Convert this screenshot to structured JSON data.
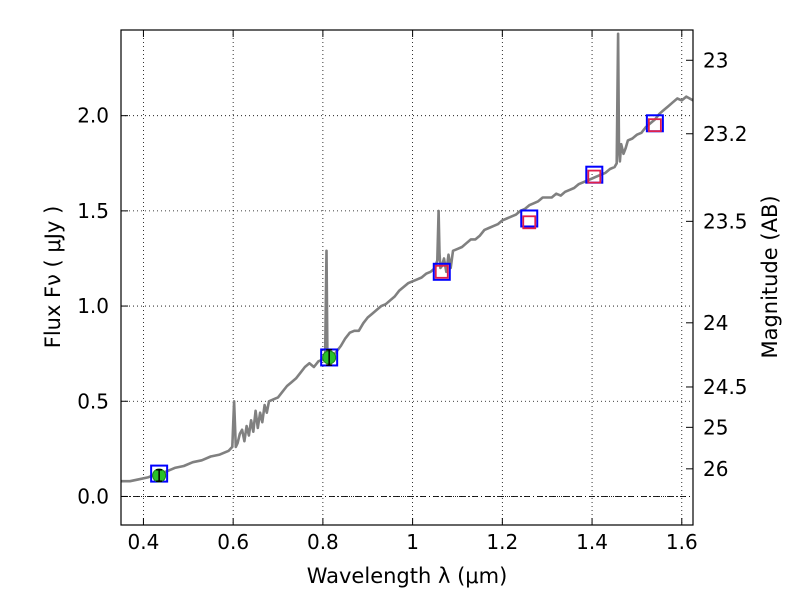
{
  "chart_data": {
    "type": "line",
    "xlabel": "Wavelength  λ (μm)",
    "ylabel": "Flux  Fν  ( μJy )",
    "y2label": "Magnitude (AB)",
    "xlim": [
      0.35,
      1.625
    ],
    "ylim": [
      -0.15,
      2.45
    ],
    "grid": true,
    "x_ticks": [
      0.4,
      0.6,
      0.8,
      1.0,
      1.2,
      1.4,
      1.6
    ],
    "x_tick_labels": [
      "0.4",
      "0.6",
      "0.8",
      "1",
      "1.2",
      "1.4",
      "1.6"
    ],
    "y_ticks": [
      0.0,
      0.5,
      1.0,
      1.5,
      2.0
    ],
    "y_tick_labels": [
      "0.0",
      "0.5",
      "1.0",
      "1.5",
      "2.0"
    ],
    "y2_ticks": [
      {
        "flux": 2.291,
        "label": "23"
      },
      {
        "flux": 1.905,
        "label": "23.2"
      },
      {
        "flux": 1.445,
        "label": "23.5"
      },
      {
        "flux": 0.912,
        "label": "24"
      },
      {
        "flux": 0.575,
        "label": "24.5"
      },
      {
        "flux": 0.363,
        "label": "25"
      },
      {
        "flux": 0.145,
        "label": "26"
      }
    ],
    "series": [
      {
        "color": "#808080",
        "x": [
          0.35,
          0.37,
          0.39,
          0.41,
          0.43,
          0.45,
          0.47,
          0.49,
          0.51,
          0.53,
          0.55,
          0.57,
          0.59,
          0.598,
          0.602,
          0.606,
          0.61,
          0.615,
          0.62,
          0.625,
          0.63,
          0.635,
          0.64,
          0.645,
          0.65,
          0.655,
          0.66,
          0.665,
          0.67,
          0.675,
          0.68,
          0.69,
          0.7,
          0.71,
          0.72,
          0.73,
          0.74,
          0.75,
          0.76,
          0.77,
          0.78,
          0.79,
          0.8,
          0.805,
          0.808,
          0.81,
          0.812,
          0.815,
          0.82,
          0.83,
          0.84,
          0.85,
          0.86,
          0.87,
          0.88,
          0.89,
          0.9,
          0.91,
          0.92,
          0.93,
          0.94,
          0.95,
          0.96,
          0.97,
          0.98,
          0.99,
          1.0,
          1.01,
          1.02,
          1.03,
          1.04,
          1.05,
          1.055,
          1.058,
          1.06,
          1.062,
          1.065,
          1.07,
          1.075,
          1.08,
          1.085,
          1.09,
          1.1,
          1.11,
          1.12,
          1.13,
          1.14,
          1.15,
          1.16,
          1.17,
          1.18,
          1.19,
          1.2,
          1.21,
          1.22,
          1.23,
          1.24,
          1.25,
          1.26,
          1.27,
          1.28,
          1.29,
          1.3,
          1.31,
          1.32,
          1.33,
          1.34,
          1.35,
          1.36,
          1.37,
          1.38,
          1.39,
          1.4,
          1.41,
          1.42,
          1.43,
          1.44,
          1.45,
          1.455,
          1.458,
          1.46,
          1.462,
          1.465,
          1.47,
          1.475,
          1.48,
          1.49,
          1.5,
          1.51,
          1.52,
          1.53,
          1.54,
          1.55,
          1.56,
          1.57,
          1.58,
          1.59,
          1.6,
          1.61,
          1.625
        ],
        "y": [
          0.08,
          0.08,
          0.09,
          0.1,
          0.12,
          0.13,
          0.15,
          0.16,
          0.18,
          0.19,
          0.21,
          0.22,
          0.24,
          0.26,
          0.5,
          0.26,
          0.28,
          0.33,
          0.35,
          0.29,
          0.37,
          0.32,
          0.4,
          0.34,
          0.45,
          0.36,
          0.44,
          0.39,
          0.48,
          0.44,
          0.5,
          0.51,
          0.52,
          0.55,
          0.58,
          0.6,
          0.62,
          0.65,
          0.68,
          0.7,
          0.68,
          0.71,
          0.72,
          0.72,
          1.29,
          0.75,
          0.71,
          0.7,
          0.73,
          0.76,
          0.79,
          0.83,
          0.86,
          0.87,
          0.87,
          0.91,
          0.94,
          0.96,
          0.98,
          1.0,
          1.01,
          1.03,
          1.05,
          1.08,
          1.1,
          1.12,
          1.13,
          1.14,
          1.15,
          1.17,
          1.18,
          1.2,
          1.24,
          1.5,
          1.28,
          1.2,
          1.21,
          1.25,
          1.18,
          1.27,
          1.2,
          1.29,
          1.3,
          1.31,
          1.33,
          1.35,
          1.35,
          1.37,
          1.4,
          1.41,
          1.42,
          1.43,
          1.45,
          1.46,
          1.47,
          1.48,
          1.5,
          1.51,
          1.53,
          1.54,
          1.55,
          1.57,
          1.57,
          1.57,
          1.59,
          1.58,
          1.6,
          1.61,
          1.62,
          1.64,
          1.65,
          1.66,
          1.67,
          1.68,
          1.69,
          1.7,
          1.72,
          1.73,
          1.75,
          2.43,
          1.82,
          1.76,
          1.85,
          1.8,
          1.83,
          1.87,
          1.88,
          1.9,
          1.91,
          1.94,
          1.96,
          1.98,
          2.01,
          2.03,
          2.05,
          2.07,
          2.09,
          2.08,
          2.1,
          2.08
        ]
      }
    ],
    "points_green": [
      {
        "x": 0.435,
        "y": 0.11,
        "err": 0.03
      },
      {
        "x": 0.814,
        "y": 0.73,
        "err": 0.04
      }
    ],
    "points_red_squares": [
      {
        "x": 1.065,
        "y": 1.18
      },
      {
        "x": 1.26,
        "y": 1.44
      },
      {
        "x": 1.405,
        "y": 1.68
      },
      {
        "x": 1.54,
        "y": 1.95
      }
    ],
    "points_blue_squares": [
      {
        "x": 0.435,
        "y": 0.12
      },
      {
        "x": 0.814,
        "y": 0.73
      },
      {
        "x": 1.065,
        "y": 1.18
      },
      {
        "x": 1.26,
        "y": 1.46
      },
      {
        "x": 1.405,
        "y": 1.69
      },
      {
        "x": 1.54,
        "y": 1.96
      }
    ]
  }
}
